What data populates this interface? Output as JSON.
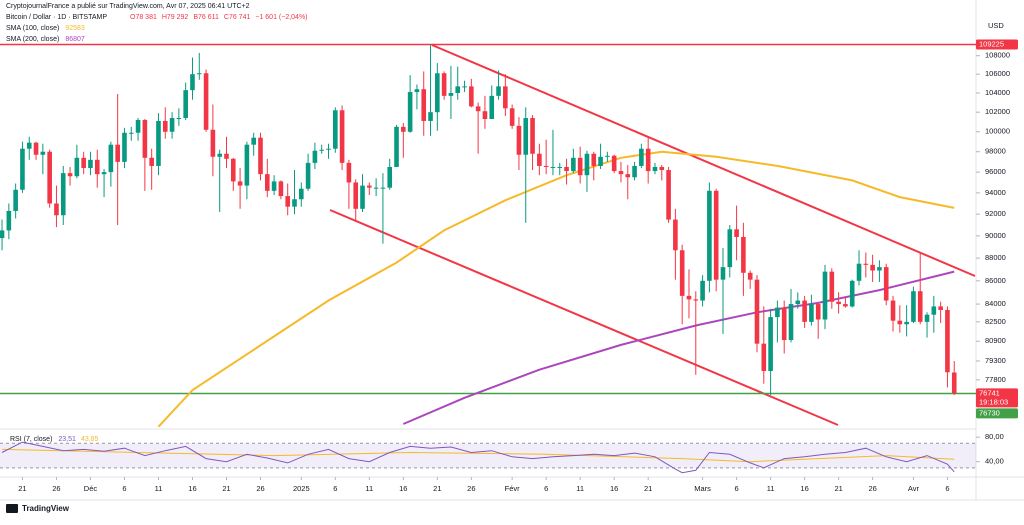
{
  "header": {
    "publisher": "CryptojournalFrance a publié sur TradingView.com, Avr 07, 2025 06:41 UTC+2",
    "footer_logo": "TradingView"
  },
  "chart_data": {
    "type": "candlestick",
    "symbol": "Bitcoin / Dollar · 1D · BITSTAMP",
    "currency": "USD",
    "log_scale": true,
    "grid": false,
    "legend_values": [
      {
        "value": 78381,
        "label": "O78 381"
      },
      {
        "value": 79292,
        "label": "H79 292"
      },
      {
        "value": 76611,
        "label": "B76 611"
      },
      {
        "value": 76741,
        "label": "C76 741"
      },
      {
        "value": -1601,
        "label": "−1 601 (−2,04%)"
      }
    ],
    "up_color": "#089981",
    "down_color": "#f23645",
    "xlim": [
      -0.3,
      143.2
    ],
    "xticks": [
      {
        "value": 3,
        "label": "21"
      },
      {
        "value": 8,
        "label": "26"
      },
      {
        "value": 13,
        "label": "Déc"
      },
      {
        "value": 18,
        "label": "6"
      },
      {
        "value": 23,
        "label": "11"
      },
      {
        "value": 28,
        "label": "16"
      },
      {
        "value": 33,
        "label": "21"
      },
      {
        "value": 38,
        "label": "26"
      },
      {
        "value": 44,
        "label": "2025"
      },
      {
        "value": 49,
        "label": "6"
      },
      {
        "value": 54,
        "label": "11"
      },
      {
        "value": 59,
        "label": "16"
      },
      {
        "value": 64,
        "label": "21"
      },
      {
        "value": 69,
        "label": "26"
      },
      {
        "value": 75,
        "label": "Févr"
      },
      {
        "value": 80,
        "label": "6"
      },
      {
        "value": 85,
        "label": "11"
      },
      {
        "value": 90,
        "label": "16"
      },
      {
        "value": 95,
        "label": "21"
      },
      {
        "value": 103,
        "label": "Mars"
      },
      {
        "value": 108,
        "label": "6"
      },
      {
        "value": 113,
        "label": "11"
      },
      {
        "value": 118,
        "label": "16"
      },
      {
        "value": 123,
        "label": "21"
      },
      {
        "value": 128,
        "label": "26"
      },
      {
        "value": 134,
        "label": "Avr"
      },
      {
        "value": 139,
        "label": "6"
      }
    ],
    "ylim": [
      74100,
      112200
    ],
    "yticks": [
      108000,
      106000,
      104000,
      102000,
      100000,
      98000,
      96000,
      94000,
      92000,
      90000,
      88000,
      86000,
      84000,
      82500,
      80900,
      79300,
      77800
    ],
    "ohlc": [
      [
        89800,
        91500,
        88700,
        90500
      ],
      [
        90500,
        93000,
        89700,
        92300
      ],
      [
        92300,
        94900,
        91600,
        94300
      ],
      [
        94300,
        99000,
        94000,
        98300
      ],
      [
        98300,
        99500,
        97200,
        98900
      ],
      [
        98900,
        99000,
        97200,
        97700
      ],
      [
        97700,
        98800,
        95800,
        98000
      ],
      [
        98000,
        98200,
        92600,
        93000
      ],
      [
        93000,
        94700,
        90800,
        91900
      ],
      [
        91900,
        96600,
        91000,
        95900
      ],
      [
        95900,
        96500,
        94700,
        95600
      ],
      [
        95600,
        98700,
        95400,
        97400
      ],
      [
        97400,
        98000,
        95800,
        96400
      ],
      [
        96400,
        98000,
        95700,
        97200
      ],
      [
        97200,
        98200,
        94500,
        95800
      ],
      [
        95800,
        96300,
        93600,
        96000
      ],
      [
        96000,
        99000,
        94600,
        98700
      ],
      [
        98700,
        103900,
        91000,
        97000
      ],
      [
        97000,
        100400,
        96400,
        99900
      ],
      [
        99900,
        100500,
        99100,
        99900
      ],
      [
        99900,
        101400,
        99100,
        101200
      ],
      [
        101200,
        101300,
        94200,
        97400
      ],
      [
        97400,
        98300,
        94300,
        96600
      ],
      [
        96600,
        101900,
        95700,
        101100
      ],
      [
        101100,
        102500,
        99300,
        100000
      ],
      [
        100000,
        102000,
        99300,
        101400
      ],
      [
        101400,
        102400,
        100600,
        101400
      ],
      [
        101400,
        105100,
        101200,
        104300
      ],
      [
        104300,
        107800,
        103300,
        106000
      ],
      [
        106000,
        108300,
        105400,
        106100
      ],
      [
        106100,
        106500,
        100000,
        100200
      ],
      [
        100200,
        102800,
        95600,
        97500
      ],
      [
        97500,
        98200,
        92200,
        97800
      ],
      [
        97800,
        99500,
        96400,
        97300
      ],
      [
        97300,
        97400,
        94200,
        95100
      ],
      [
        95100,
        96400,
        92500,
        94700
      ],
      [
        94700,
        99000,
        93400,
        98700
      ],
      [
        98700,
        99900,
        97600,
        99400
      ],
      [
        99400,
        99900,
        95200,
        95800
      ],
      [
        95800,
        97300,
        93600,
        94200
      ],
      [
        94200,
        95700,
        93800,
        95100
      ],
      [
        95100,
        95200,
        93400,
        93700
      ],
      [
        93700,
        94900,
        91900,
        92700
      ],
      [
        92700,
        96200,
        92000,
        93400
      ],
      [
        93400,
        95000,
        92700,
        94400
      ],
      [
        94400,
        97800,
        94200,
        96900
      ],
      [
        96900,
        98900,
        96300,
        98100
      ],
      [
        98100,
        98700,
        97800,
        98200
      ],
      [
        98200,
        98800,
        97300,
        98300
      ],
      [
        98300,
        102500,
        97900,
        102200
      ],
      [
        102200,
        102700,
        96200,
        96900
      ],
      [
        96900,
        97200,
        92500,
        95000
      ],
      [
        95000,
        95300,
        91300,
        92500
      ],
      [
        92500,
        95800,
        92200,
        94700
      ],
      [
        94700,
        95000,
        93800,
        94500
      ],
      [
        94500,
        95400,
        93700,
        94500
      ],
      [
        94500,
        95900,
        89300,
        94500
      ],
      [
        94500,
        97300,
        94300,
        96500
      ],
      [
        96500,
        100700,
        96500,
        100500
      ],
      [
        100500,
        100900,
        97400,
        100000
      ],
      [
        100000,
        105900,
        99900,
        104100
      ],
      [
        104100,
        104900,
        102300,
        104400
      ],
      [
        104400,
        106300,
        99600,
        101100
      ],
      [
        101100,
        109225,
        99600,
        102000
      ],
      [
        102000,
        107200,
        100100,
        106100
      ],
      [
        106100,
        106300,
        103300,
        103700
      ],
      [
        103700,
        106900,
        101300,
        104000
      ],
      [
        104000,
        106800,
        103300,
        104700
      ],
      [
        104700,
        105300,
        104100,
        104700
      ],
      [
        104700,
        105500,
        102500,
        102600
      ],
      [
        102600,
        103000,
        97800,
        102100
      ],
      [
        102100,
        103700,
        100300,
        101300
      ],
      [
        101300,
        104800,
        101300,
        103700
      ],
      [
        103700,
        106400,
        103300,
        104700
      ],
      [
        104700,
        106000,
        101600,
        102400
      ],
      [
        102400,
        102800,
        100300,
        100600
      ],
      [
        100600,
        101500,
        96200,
        97700
      ],
      [
        97700,
        102500,
        91200,
        101400
      ],
      [
        101400,
        101700,
        96200,
        97800
      ],
      [
        97800,
        98800,
        95700,
        96600
      ],
      [
        96600,
        99200,
        95800,
        96500
      ],
      [
        96500,
        100200,
        95700,
        96500
      ],
      [
        96500,
        96900,
        95700,
        96500
      ],
      [
        96500,
        97300,
        94800,
        96100
      ],
      [
        96100,
        98300,
        95900,
        97400
      ],
      [
        97400,
        98500,
        94900,
        95700
      ],
      [
        95700,
        98100,
        94100,
        97800
      ],
      [
        97800,
        98000,
        95200,
        96600
      ],
      [
        96600,
        98800,
        96300,
        97500
      ],
      [
        97500,
        98000,
        97000,
        97600
      ],
      [
        97600,
        97700,
        95900,
        96100
      ],
      [
        96100,
        97000,
        95000,
        95800
      ],
      [
        95800,
        96700,
        93400,
        95500
      ],
      [
        95500,
        97000,
        95200,
        96600
      ],
      [
        96600,
        98800,
        96400,
        98300
      ],
      [
        98300,
        99500,
        94900,
        96100
      ],
      [
        96100,
        96900,
        95800,
        96500
      ],
      [
        96500,
        96700,
        95200,
        96200
      ],
      [
        96200,
        96500,
        91200,
        91500
      ],
      [
        91500,
        92500,
        86100,
        88700
      ],
      [
        88700,
        89200,
        82300,
        84700
      ],
      [
        84700,
        87000,
        82800,
        84400
      ],
      [
        84400,
        85100,
        78200,
        84300
      ],
      [
        84300,
        86500,
        83800,
        86000
      ],
      [
        86000,
        95000,
        85000,
        94200
      ],
      [
        94200,
        94400,
        85100,
        86100
      ],
      [
        86100,
        88900,
        81500,
        87200
      ],
      [
        87200,
        91000,
        86300,
        90600
      ],
      [
        90600,
        92800,
        87800,
        89900
      ],
      [
        89900,
        91200,
        84700,
        86700
      ],
      [
        86700,
        86900,
        85300,
        86100
      ],
      [
        86100,
        86500,
        80000,
        80700
      ],
      [
        80700,
        83800,
        77500,
        78500
      ],
      [
        78500,
        83600,
        76600,
        82900
      ],
      [
        82900,
        84300,
        80800,
        83700
      ],
      [
        83700,
        84300,
        79900,
        81000
      ],
      [
        81000,
        85300,
        80800,
        84000
      ],
      [
        84000,
        85000,
        83600,
        84300
      ],
      [
        84300,
        84700,
        82000,
        82500
      ],
      [
        82500,
        84800,
        82200,
        84000
      ],
      [
        84000,
        84100,
        81100,
        82700
      ],
      [
        82700,
        87400,
        81900,
        86800
      ],
      [
        86800,
        87100,
        83600,
        84200
      ],
      [
        84200,
        85000,
        83200,
        84000
      ],
      [
        84000,
        84600,
        83700,
        83800
      ],
      [
        83800,
        86100,
        83700,
        86000
      ],
      [
        86000,
        88700,
        85600,
        87500
      ],
      [
        87500,
        88500,
        86300,
        87400
      ],
      [
        87400,
        88300,
        85900,
        86900
      ],
      [
        86900,
        87800,
        85900,
        87200
      ],
      [
        87200,
        87500,
        83900,
        84300
      ],
      [
        84300,
        84700,
        81700,
        82600
      ],
      [
        82600,
        83900,
        81600,
        82300
      ],
      [
        82300,
        83900,
        81300,
        82500
      ],
      [
        82500,
        85500,
        82400,
        85100
      ],
      [
        85100,
        88400,
        82300,
        82500
      ],
      [
        82500,
        83300,
        81200,
        83100
      ],
      [
        83100,
        84700,
        81600,
        83800
      ],
      [
        83800,
        84200,
        82400,
        83500
      ],
      [
        83500,
        83800,
        77200,
        78400
      ],
      [
        78381,
        79292,
        76611,
        76741
      ]
    ],
    "lines": [
      {
        "name": "SMA (100, close)",
        "color": "#f7b928",
        "last": 92583,
        "x": [
          23,
          28,
          37,
          48,
          58,
          65,
          74,
          83,
          91,
          97,
          105,
          114,
          125,
          132,
          140
        ],
        "values": [
          74200,
          77000,
          80200,
          84300,
          87600,
          90500,
          93300,
          95700,
          97400,
          98000,
          97500,
          96600,
          95200,
          93600,
          92583
        ]
      },
      {
        "name": "SMA (200, close)",
        "color": "#ab47bc",
        "last": 86807,
        "x": [
          59,
          68,
          79,
          91,
          102,
          111,
          120,
          129,
          140
        ],
        "values": [
          74400,
          76400,
          78600,
          80600,
          82200,
          83300,
          84100,
          85200,
          86807
        ]
      }
    ],
    "levels": [
      {
        "value": 109225,
        "color": "#f23645"
      },
      {
        "value": 76730,
        "color": "#43a047"
      }
    ],
    "last_price": {
      "value": 76741,
      "countdown": "19:18:03"
    },
    "rsi": {
      "name": "RSI (7, close)",
      "legend": [
        {
          "value": 23.51,
          "label": "23,51"
        },
        {
          "value": 43.85,
          "label": "43,85"
        }
      ],
      "ylim": [
        16.7,
        91.7
      ],
      "yticks": [
        {
          "value": 80,
          "label": "80,00"
        },
        {
          "value": 40,
          "label": "40,00"
        }
      ],
      "band": [
        30,
        70
      ],
      "x": [
        0,
        3,
        6,
        9,
        12,
        15,
        18,
        21,
        24,
        27,
        30,
        33,
        36,
        39,
        42,
        45,
        48,
        51,
        54,
        57,
        60,
        63,
        66,
        69,
        72,
        75,
        78,
        81,
        84,
        87,
        90,
        93,
        96,
        99,
        100,
        102,
        104,
        107,
        110,
        112,
        115,
        118,
        121,
        124,
        127,
        130,
        133,
        136,
        139,
        140
      ],
      "values": [
        55,
        72,
        65,
        58,
        60,
        57,
        62,
        50,
        58,
        65,
        45,
        40,
        52,
        46,
        38,
        52,
        60,
        45,
        40,
        55,
        65,
        62,
        64,
        55,
        58,
        48,
        45,
        48,
        50,
        52,
        50,
        54,
        48,
        28,
        22,
        26,
        55,
        52,
        38,
        30,
        45,
        48,
        52,
        55,
        62,
        48,
        40,
        50,
        36,
        23.51
      ],
      "ma_x": [
        0,
        20,
        40,
        60,
        80,
        100,
        110,
        120,
        130,
        140
      ],
      "ma_values": [
        60,
        55,
        50,
        55,
        52,
        45,
        40,
        45,
        50,
        43.85
      ]
    }
  }
}
